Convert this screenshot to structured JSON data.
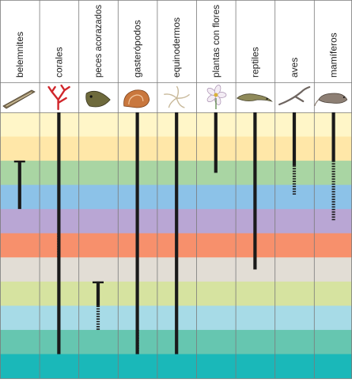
{
  "columns": [
    {
      "label": "belemnites",
      "icon": "belemnite-fossil-icon"
    },
    {
      "label": "corales",
      "icon": "coral-icon"
    },
    {
      "label": "peces acorazados",
      "icon": "armored-fish-icon"
    },
    {
      "label": "gasterópodos",
      "icon": "snail-shell-icon"
    },
    {
      "label": "equinodermos",
      "icon": "starfish-icon"
    },
    {
      "label": "plantas con flores",
      "icon": "flower-icon"
    },
    {
      "label": "reptiles",
      "icon": "lizard-icon"
    },
    {
      "label": "aves",
      "icon": "bird-icon"
    },
    {
      "label": "mamíferos",
      "icon": "rat-icon"
    }
  ],
  "bands": [
    "#fff6c8",
    "#ffe7a8",
    "#a9d5a3",
    "#8cc2e8",
    "#b9a6d4",
    "#f7906c",
    "#e2ddd5",
    "#d6e3a0",
    "#a7dbe7",
    "#66c6b0",
    "#1ab8b9"
  ],
  "colors": {
    "bar": "#1a1a1a",
    "grid": "#7a7a7a"
  },
  "ranges": [
    {
      "col": 0,
      "solid": [
        2,
        4
      ],
      "start_cap": true,
      "dotted": null
    },
    {
      "col": 1,
      "solid": [
        0,
        10
      ],
      "start_cap": false,
      "dotted": [
        5,
        6
      ]
    },
    {
      "col": 2,
      "solid": [
        7,
        8
      ],
      "start_cap": true,
      "dotted": [
        8,
        9
      ]
    },
    {
      "col": 3,
      "solid": [
        0,
        10
      ],
      "start_cap": false,
      "dotted": [
        9,
        10
      ]
    },
    {
      "col": 4,
      "solid": [
        0,
        10
      ],
      "start_cap": false,
      "dotted": null
    },
    {
      "col": 5,
      "solid": [
        0,
        2.5
      ],
      "start_cap": false,
      "dotted": null
    },
    {
      "col": 6,
      "solid": [
        0,
        6.5
      ],
      "start_cap": false,
      "dotted": null
    },
    {
      "col": 7,
      "solid": [
        0,
        2.2
      ],
      "start_cap": false,
      "dotted": [
        2.2,
        3.4
      ]
    },
    {
      "col": 8,
      "solid": [
        0,
        2.0
      ],
      "start_cap": false,
      "dotted": [
        2.0,
        4.5
      ]
    }
  ]
}
